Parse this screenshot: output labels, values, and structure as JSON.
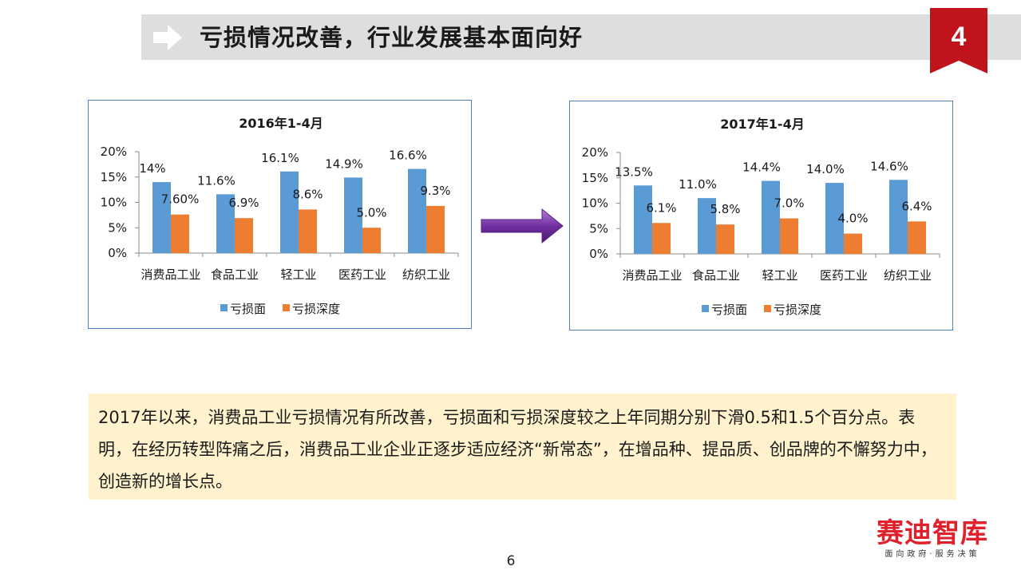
{
  "header": {
    "title": "亏损情况改善，行业发展基本面向好",
    "badge": "4"
  },
  "chart_data": [
    {
      "type": "bar",
      "title": "2016年1-4月",
      "categories": [
        "消费品工业",
        "食品工业",
        "轻工业",
        "医药工业",
        "纺织工业"
      ],
      "ylim": [
        0,
        20
      ],
      "yticks": [
        "0%",
        "5%",
        "10%",
        "15%",
        "20%"
      ],
      "series": [
        {
          "name": "亏损面",
          "values": [
            14,
            11.6,
            16.1,
            14.9,
            16.6
          ],
          "labels": [
            "14%",
            "11.6%",
            "16.1%",
            "14.9%",
            "16.6%"
          ]
        },
        {
          "name": "亏损深度",
          "values": [
            7.6,
            6.9,
            8.6,
            5.0,
            9.3
          ],
          "labels": [
            "7.60%",
            "6.9%",
            "8.6%",
            "5.0%",
            "9.3%"
          ]
        }
      ],
      "legend": "bottom",
      "grid": false
    },
    {
      "type": "bar",
      "title": "2017年1-4月",
      "categories": [
        "消费品工业",
        "食品工业",
        "轻工业",
        "医药工业",
        "纺织工业"
      ],
      "ylim": [
        0,
        20
      ],
      "yticks": [
        "0%",
        "5%",
        "10%",
        "15%",
        "20%"
      ],
      "series": [
        {
          "name": "亏损面",
          "values": [
            13.5,
            11.0,
            14.4,
            14.0,
            14.6
          ],
          "labels": [
            "13.5%",
            "11.0%",
            "14.4%",
            "14.0%",
            "14.6%"
          ]
        },
        {
          "name": "亏损深度",
          "values": [
            6.1,
            5.8,
            7.0,
            4.0,
            6.4
          ],
          "labels": [
            "6.1%",
            "5.8%",
            "7.0%",
            "4.0%",
            "6.4%"
          ]
        }
      ],
      "legend": "bottom",
      "grid": false
    }
  ],
  "colors": {
    "series1": "#5b9bd5",
    "series2": "#ed7d31",
    "badge": "#c0141c",
    "arrow": "#7030a0"
  },
  "note": {
    "text": "2017年以来，消费品工业亏损情况有所改善，亏损面和亏损深度较之上年同期分别下滑0.5和1.5个百分点。表明，在经历转型阵痛之后，消费品工业企业正逐步适应经济“新常态”，在增品种、提品质、创品牌的不懈努力中，创造新的增长点。"
  },
  "logo": {
    "name": "赛迪智库",
    "tagline": "面向政府·服务决策"
  },
  "page_number": "6"
}
